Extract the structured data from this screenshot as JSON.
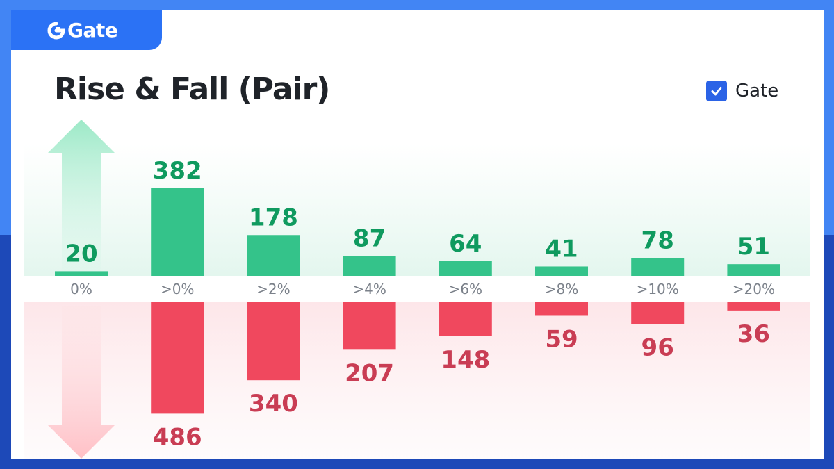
{
  "brand": {
    "name": "Gate",
    "logo_icon": "gate-logo-icon",
    "tab_color": "#2b72f5"
  },
  "title": "Rise & Fall (Pair)",
  "legend": {
    "label": "Gate",
    "checked": true,
    "icon": "check-icon",
    "color": "#2b63e6"
  },
  "colors": {
    "rise": "#34c38a",
    "rise_label": "#0f9a5f",
    "fall": "#f0485e",
    "fall_label": "#c93d54",
    "tick": "#7b818a"
  },
  "chart_data": {
    "type": "bar",
    "title": "Rise & Fall (Pair)",
    "categories": [
      "0%",
      ">0%",
      ">2%",
      ">4%",
      ">6%",
      ">8%",
      ">10%",
      ">20%"
    ],
    "series": [
      {
        "name": "Rise",
        "values": [
          20,
          382,
          178,
          87,
          64,
          41,
          78,
          51
        ]
      },
      {
        "name": "Fall",
        "values": [
          null,
          486,
          340,
          207,
          148,
          59,
          96,
          36
        ]
      }
    ],
    "grid": false,
    "legend_position": "top-right"
  }
}
